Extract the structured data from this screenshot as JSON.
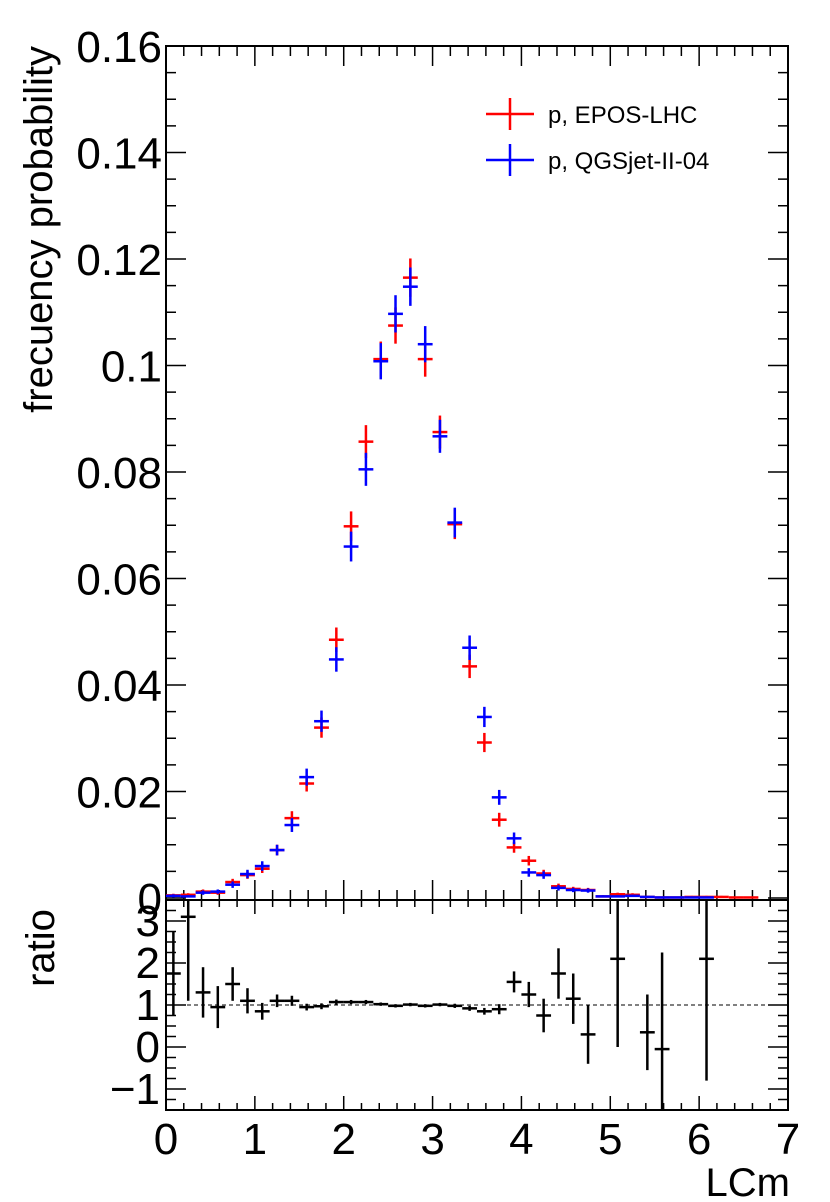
{
  "chart_data": [
    {
      "type": "scatter",
      "panel": "top",
      "ylabel": "frecuency probability",
      "xlim": [
        0,
        7
      ],
      "ylim": [
        0,
        0.16
      ],
      "grid": false,
      "legend_position": "top-right",
      "y_tick_labels": [
        "0",
        "0.02",
        "0.04",
        "0.06",
        "0.08",
        "0.1",
        "0.12",
        "0.14",
        "0.16"
      ],
      "x_bin_width": 0.1667,
      "series": [
        {
          "name": "p, EPOS-LHC",
          "color": "#ff0000",
          "x": [
            0.083,
            0.25,
            0.417,
            0.583,
            0.75,
            0.917,
            1.083,
            1.25,
            1.417,
            1.583,
            1.75,
            1.917,
            2.083,
            2.25,
            2.417,
            2.583,
            2.75,
            2.917,
            3.083,
            3.25,
            3.417,
            3.583,
            3.75,
            3.917,
            4.083,
            4.25,
            4.417,
            4.583,
            4.75,
            4.917,
            5.083,
            5.25,
            5.417,
            5.583,
            5.75,
            5.917,
            6.083,
            6.25,
            6.417,
            6.583
          ],
          "y": [
            0.0005,
            0.0006,
            0.0012,
            0.001,
            0.003,
            0.0043,
            0.0055,
            0.009,
            0.015,
            0.0215,
            0.032,
            0.0485,
            0.0698,
            0.0857,
            0.1012,
            0.1075,
            0.1165,
            0.1012,
            0.0875,
            0.0702,
            0.0435,
            0.0292,
            0.0147,
            0.0095,
            0.007,
            0.0046,
            0.0022,
            0.0017,
            0.0015,
            0.0003,
            0.0007,
            0.0006,
            0.0002,
            0.0001,
            0.0001,
            0.0002,
            0.0002,
            0.0002,
            0.0001,
            0.0001
          ],
          "yerr": [
            0.0003,
            0.0003,
            0.0004,
            0.0004,
            0.0006,
            0.0007,
            0.0008,
            0.001,
            0.0013,
            0.0015,
            0.0019,
            0.0023,
            0.0028,
            0.0031,
            0.0033,
            0.0034,
            0.0036,
            0.0033,
            0.0031,
            0.0028,
            0.0022,
            0.0018,
            0.0013,
            0.001,
            0.0009,
            0.0007,
            0.0005,
            0.0004,
            0.0004,
            0.0002,
            0.0003,
            0.0003,
            0.0002,
            0.0001,
            0.0001,
            0.0002,
            0.0002,
            0.0002,
            0.0001,
            0.0001
          ]
        },
        {
          "name": "p, QGSjet-II-04",
          "color": "#0000ff",
          "x": [
            0.083,
            0.25,
            0.417,
            0.583,
            0.75,
            0.917,
            1.083,
            1.25,
            1.417,
            1.583,
            1.75,
            1.917,
            2.083,
            2.25,
            2.417,
            2.583,
            2.75,
            2.917,
            3.083,
            3.25,
            3.417,
            3.583,
            3.75,
            3.917,
            4.083,
            4.25,
            4.417,
            4.583,
            4.75,
            4.917,
            5.083,
            5.25,
            5.417,
            5.583,
            5.75,
            5.917,
            6.083
          ],
          "y": [
            0.0004,
            0.0003,
            0.001,
            0.0012,
            0.0025,
            0.0045,
            0.006,
            0.009,
            0.0137,
            0.0227,
            0.0332,
            0.0448,
            0.066,
            0.0805,
            0.1008,
            0.1097,
            0.1148,
            0.104,
            0.0867,
            0.0705,
            0.047,
            0.034,
            0.0189,
            0.0112,
            0.0048,
            0.0043,
            0.0019,
            0.0015,
            0.0014,
            0.0003,
            0.0003,
            0.0004,
            0.0002,
            0.0001,
            0.0001,
            0.0001,
            0.0001
          ],
          "yerr": [
            0.0003,
            0.0002,
            0.0004,
            0.0004,
            0.0006,
            0.0008,
            0.0009,
            0.001,
            0.0013,
            0.0016,
            0.002,
            0.0023,
            0.0028,
            0.0031,
            0.0034,
            0.0035,
            0.0036,
            0.0034,
            0.0031,
            0.0028,
            0.0023,
            0.0019,
            0.0014,
            0.0011,
            0.0008,
            0.0007,
            0.0005,
            0.0004,
            0.0004,
            0.0002,
            0.0002,
            0.0002,
            0.0001,
            0.0001,
            0.0001,
            0.0001,
            0.0001
          ]
        }
      ]
    },
    {
      "type": "scatter",
      "panel": "bottom",
      "xlabel": "LCm",
      "ylabel": "ratio",
      "xlim": [
        0,
        7
      ],
      "ylim": [
        -1.5,
        3.5
      ],
      "grid": false,
      "y_tick_labels": [
        "−1",
        "0",
        "1",
        "2",
        "3"
      ],
      "x_tick_labels": [
        "0",
        "1",
        "2",
        "3",
        "4",
        "5",
        "6",
        "7"
      ],
      "reference_line": 1,
      "series": [
        {
          "color": "#000000",
          "x": [
            0.083,
            0.25,
            0.417,
            0.583,
            0.75,
            0.917,
            1.083,
            1.25,
            1.417,
            1.583,
            1.75,
            1.917,
            2.083,
            2.25,
            2.417,
            2.583,
            2.75,
            2.917,
            3.083,
            3.25,
            3.417,
            3.583,
            3.75,
            3.917,
            4.083,
            4.25,
            4.417,
            4.583,
            4.75,
            5.083,
            5.417,
            5.583,
            6.083
          ],
          "y": [
            1.75,
            3.1,
            1.3,
            0.95,
            1.5,
            1.1,
            0.85,
            1.1,
            1.1,
            0.95,
            0.97,
            1.07,
            1.07,
            1.07,
            1.02,
            0.98,
            1.01,
            0.98,
            1.01,
            0.98,
            0.92,
            0.85,
            0.9,
            1.55,
            1.25,
            0.75,
            1.75,
            1.15,
            0.3,
            2.1,
            0.35,
            -0.05,
            2.1
          ],
          "yerr": [
            1.0,
            2.0,
            0.6,
            0.5,
            0.4,
            0.3,
            0.2,
            0.15,
            0.12,
            0.08,
            0.07,
            0.06,
            0.05,
            0.05,
            0.04,
            0.04,
            0.04,
            0.04,
            0.04,
            0.05,
            0.06,
            0.08,
            0.12,
            0.25,
            0.3,
            0.4,
            0.6,
            0.6,
            0.7,
            2.1,
            0.9,
            2.3,
            2.9
          ]
        }
      ]
    }
  ]
}
